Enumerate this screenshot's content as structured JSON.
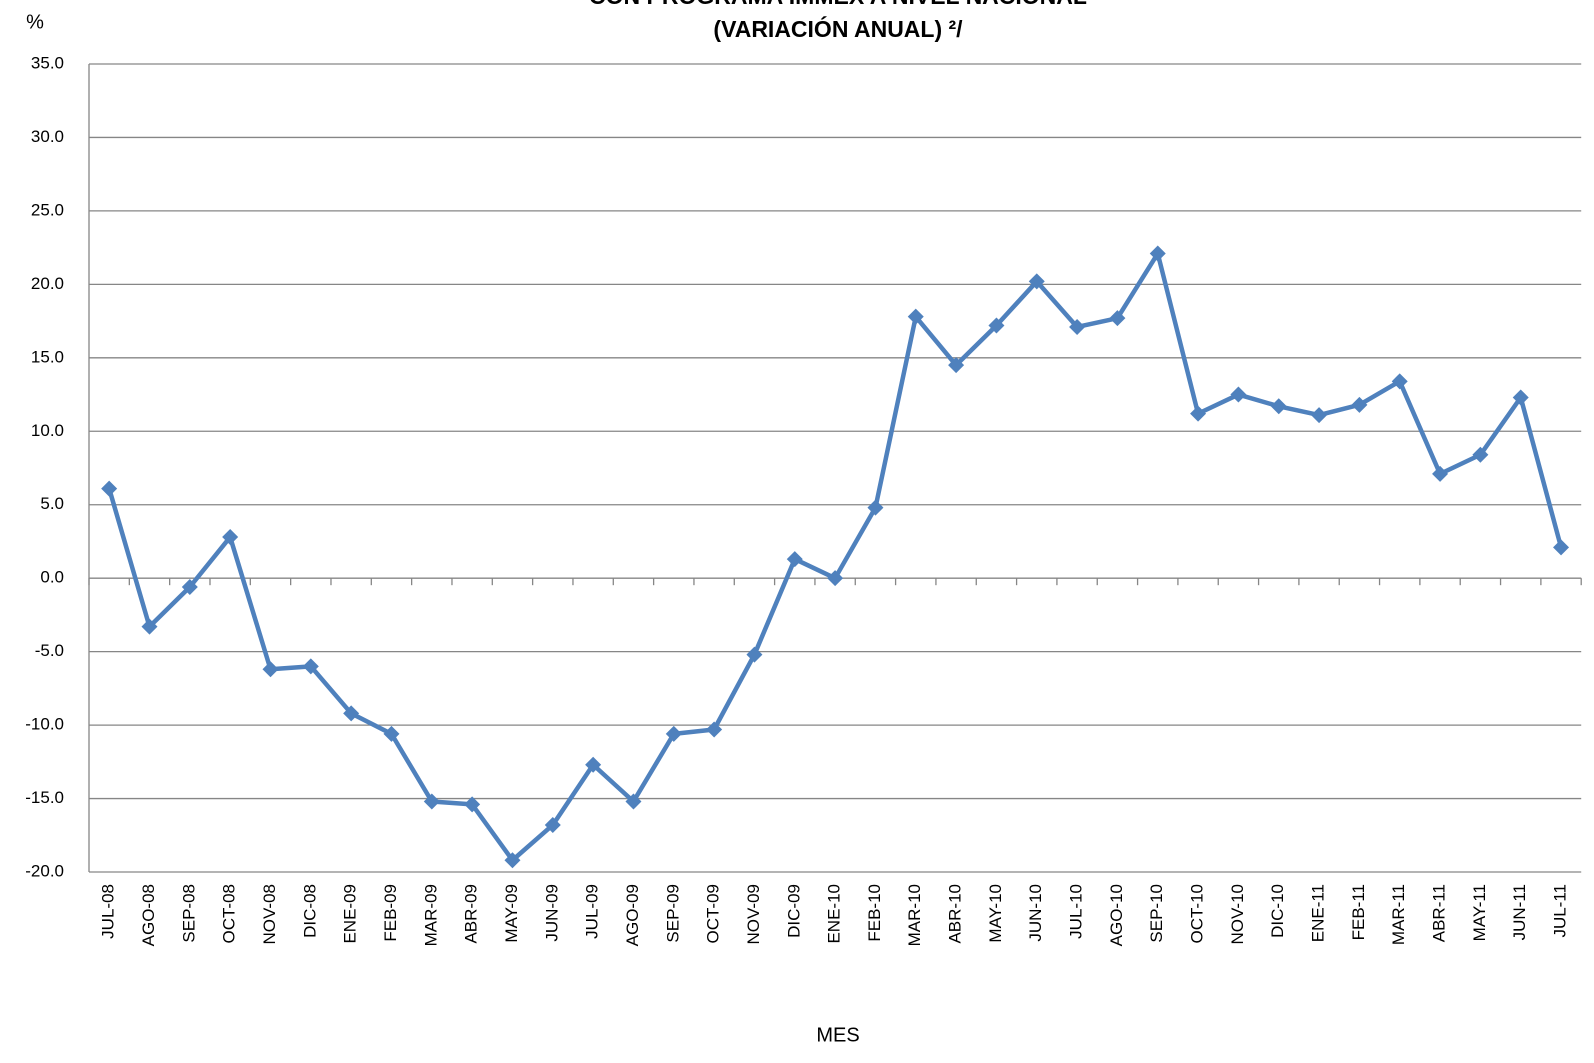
{
  "chart_data": {
    "type": "line",
    "title": "CON PROGRAMA IMMEX A NIVEL NACIONAL",
    "subtitle": "(VARIACIÓN ANUAL) ²/",
    "y_label": "%",
    "x_label": "MES",
    "categories": [
      "JUL-08",
      "AGO-08",
      "SEP-08",
      "OCT-08",
      "NOV-08",
      "DIC-08",
      "ENE-09",
      "FEB-09",
      "MAR-09",
      "ABR-09",
      "MAY-09",
      "JUN-09",
      "JUL-09",
      "AGO-09",
      "SEP-09",
      "OCT-09",
      "NOV-09",
      "DIC-09",
      "ENE-10",
      "FEB-10",
      "MAR-10",
      "ABR-10",
      "MAY-10",
      "JUN-10",
      "JUL-10",
      "AGO-10",
      "SEP-10",
      "OCT-10",
      "NOV-10",
      "DIC-10",
      "ENE-11",
      "FEB-11",
      "MAR-11",
      "ABR-11",
      "MAY-11",
      "JUN-11",
      "JUL-11"
    ],
    "series": [
      {
        "color": "#4f81bd",
        "values": [
          6.1,
          -3.3,
          -0.6,
          2.8,
          -6.2,
          -6.0,
          -9.2,
          -10.6,
          -15.2,
          -15.4,
          -19.2,
          -16.8,
          -12.7,
          -15.2,
          -10.6,
          -10.3,
          -5.2,
          1.3,
          0.0,
          4.8,
          17.8,
          14.5,
          17.2,
          20.2,
          17.1,
          17.7,
          22.1,
          11.2,
          12.5,
          11.7,
          11.1,
          11.8,
          13.4,
          7.1,
          8.4,
          12.3,
          2.1
        ]
      }
    ],
    "ylim": [
      -20,
      35
    ],
    "yticks": [
      {
        "value": 35,
        "label": "35.0"
      },
      {
        "value": 30,
        "label": "30.0"
      },
      {
        "value": 25,
        "label": "25.0"
      },
      {
        "value": 20,
        "label": "20.0"
      },
      {
        "value": 15,
        "label": "15.0"
      },
      {
        "value": 10,
        "label": "10.0"
      },
      {
        "value": 5,
        "label": "5.0"
      },
      {
        "value": 0,
        "label": "0.0"
      },
      {
        "value": -5,
        "label": "-5.0"
      },
      {
        "value": -10,
        "label": "-10.0"
      },
      {
        "value": -15,
        "label": "-15.0"
      },
      {
        "value": -20,
        "label": "-20.0"
      }
    ],
    "grid": true
  }
}
